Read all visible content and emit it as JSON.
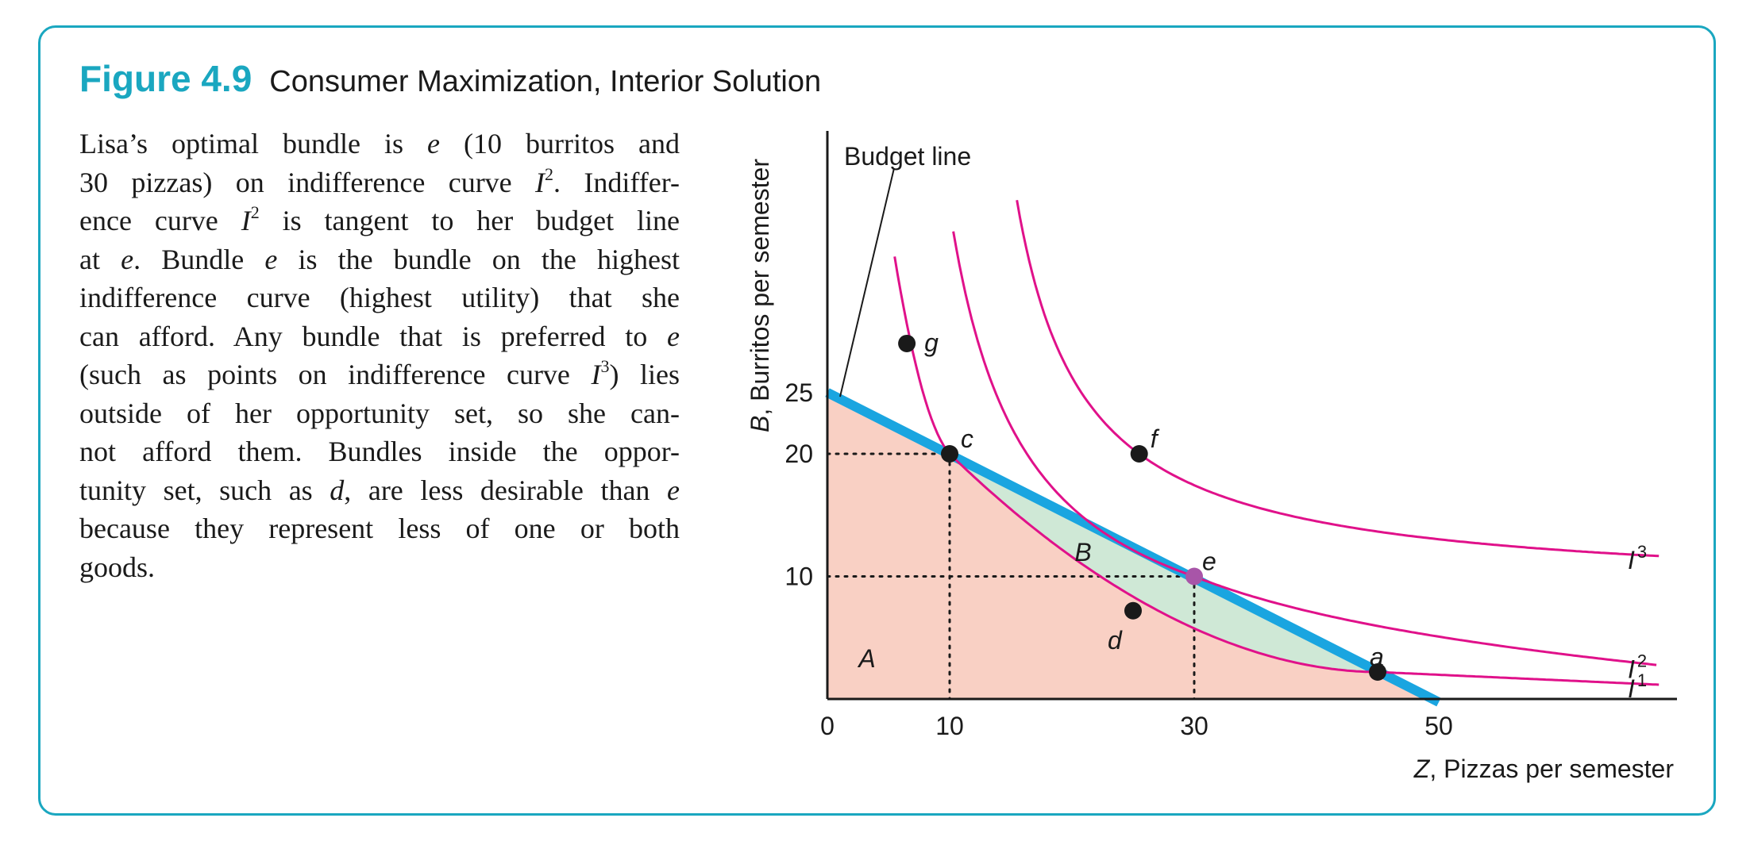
{
  "figure": {
    "number": "Figure 4.9",
    "title": "Consumer Maximization, Interior Solution"
  },
  "caption_lines": [
    [
      "Lisa’s optimal bundle is ",
      {
        "i": "e"
      },
      " (10 burritos and"
    ],
    [
      "30 pizzas) on indifference curve ",
      {
        "i": "I"
      },
      {
        "sup": "2"
      },
      ". Indiffer-"
    ],
    [
      "ence curve ",
      {
        "i": "I"
      },
      {
        "sup": "2"
      },
      " is tangent to her budget line"
    ],
    [
      "at ",
      {
        "i": "e"
      },
      ". Bundle ",
      {
        "i": "e"
      },
      " is the bundle on the highest"
    ],
    [
      "indifference curve (highest utility) that she"
    ],
    [
      "can afford. Any bundle that is preferred to ",
      {
        "i": "e"
      }
    ],
    [
      "(such as points on indifference curve ",
      {
        "i": "I"
      },
      {
        "sup": "3"
      },
      ") lies"
    ],
    [
      "outside of her opportunity set, so she can-"
    ],
    [
      "not afford them. Bundles inside the oppor-"
    ],
    [
      "tunity set, such as ",
      {
        "i": "d"
      },
      ", are less desirable than ",
      {
        "i": "e"
      }
    ],
    [
      "because they represent less of one or both"
    ],
    [
      "goods."
    ]
  ],
  "chart_data": {
    "type": "line",
    "xlabel_var": "Z",
    "xlabel": ", Pizzas per semester",
    "ylabel_var": "B",
    "ylabel": ", Burritos per semester",
    "x_ticks": [
      0,
      10,
      30,
      50
    ],
    "y_ticks": [
      10,
      20,
      25
    ],
    "xlim": [
      0,
      70
    ],
    "ylim": [
      0,
      47
    ],
    "budget_line": {
      "label": "Budget line",
      "intercept_y": 25,
      "intercept_x": 50,
      "color": "#1aa5e0"
    },
    "regions": [
      {
        "name": "A",
        "description_color": "#f9d0c4"
      },
      {
        "name": "B",
        "description_color": "#cfe8d6"
      }
    ],
    "indifference_curves": [
      {
        "name": "I",
        "sup": "1",
        "color": "#e0118a",
        "through": [
          "g",
          "c",
          "d",
          "a"
        ]
      },
      {
        "name": "I",
        "sup": "2",
        "color": "#e0118a",
        "through": [
          "e"
        ]
      },
      {
        "name": "I",
        "sup": "3",
        "color": "#e0118a",
        "through": [
          "f"
        ]
      }
    ],
    "points": [
      {
        "name": "g",
        "x": 6.5,
        "y": 29
      },
      {
        "name": "c",
        "x": 10,
        "y": 20
      },
      {
        "name": "f",
        "x": 25.5,
        "y": 20
      },
      {
        "name": "e",
        "x": 30,
        "y": 10,
        "color": "#a855a8"
      },
      {
        "name": "d",
        "x": 25,
        "y": 7.2
      },
      {
        "name": "a",
        "x": 45,
        "y": 2.2
      }
    ],
    "guides": [
      {
        "from": "c",
        "to_axes": true
      },
      {
        "from": "e",
        "to_axes": true
      }
    ]
  }
}
